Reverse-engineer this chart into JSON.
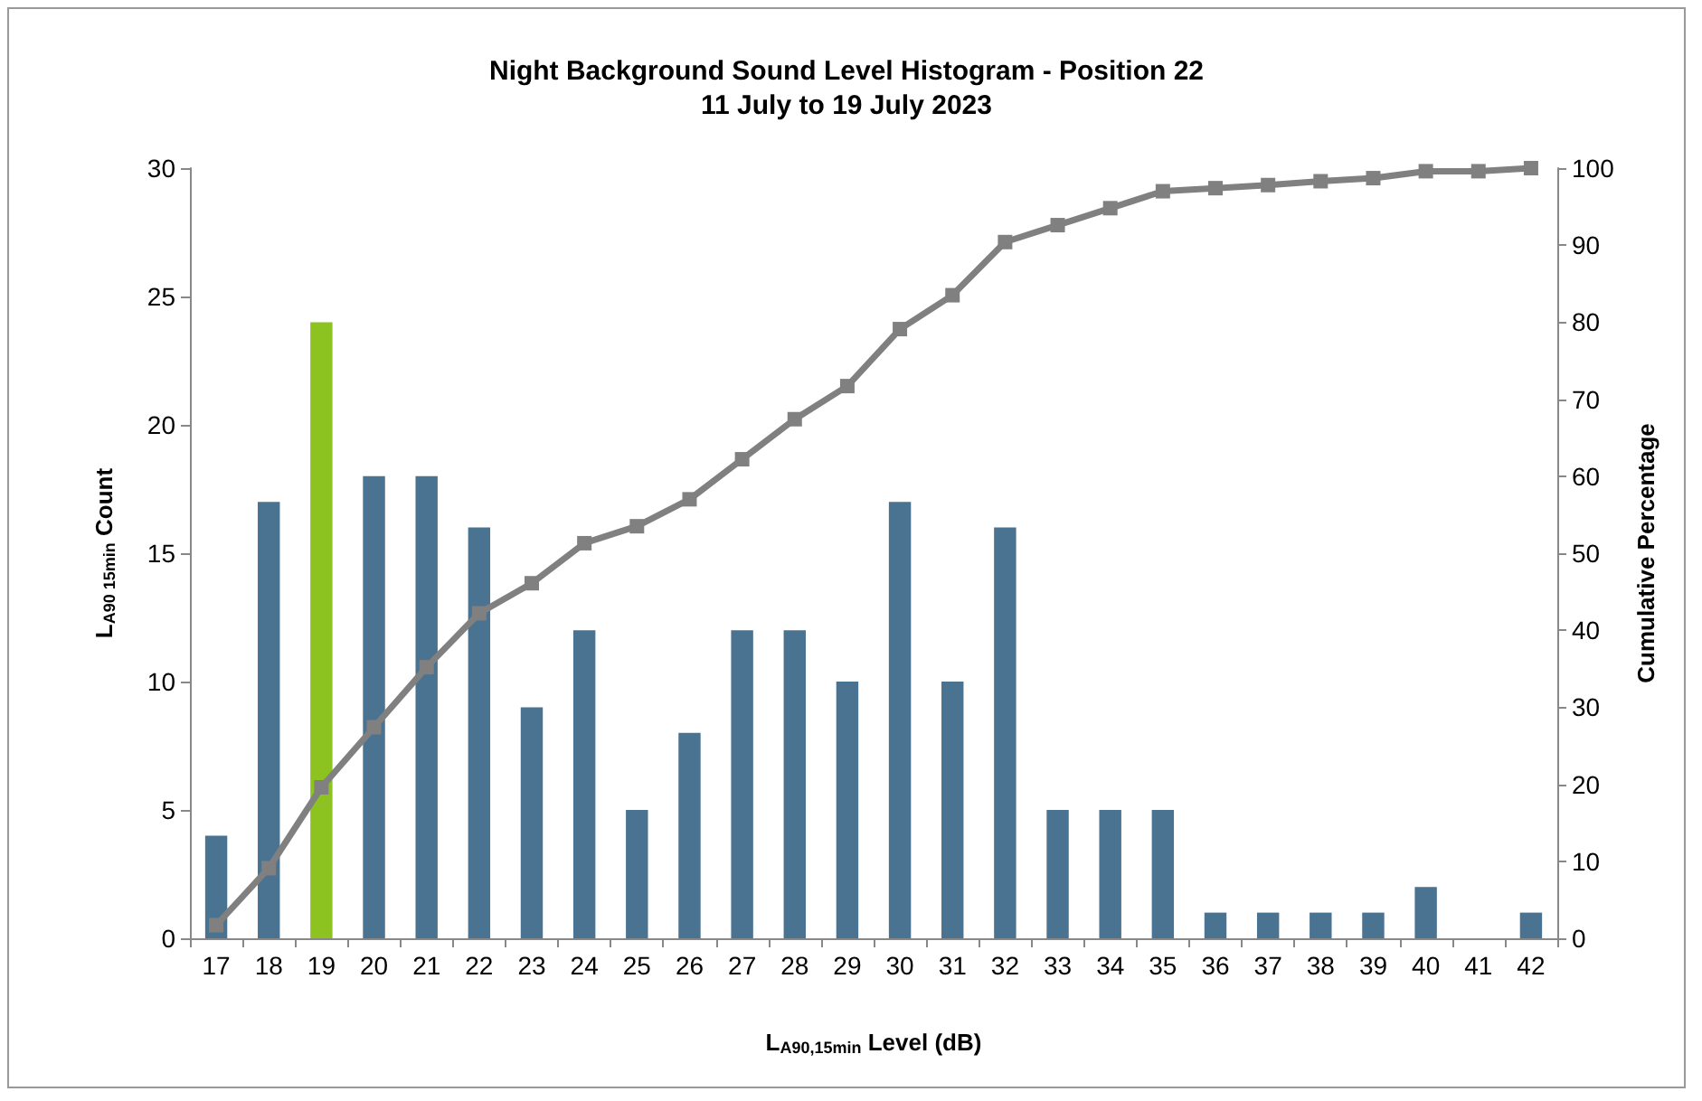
{
  "chart_data": {
    "type": "bar",
    "title": "Night Background Sound Level Histogram - Position 22",
    "subtitle": "11 July to 19 July 2023",
    "xlabel": "L$_{A90,15min}$ Level (dB)",
    "ylabel": "L$_{A90 15min}$ Count",
    "y2label": "Cumulative Percentage",
    "categories": [
      "17",
      "18",
      "19",
      "20",
      "21",
      "22",
      "23",
      "24",
      "25",
      "26",
      "27",
      "28",
      "29",
      "30",
      "31",
      "32",
      "33",
      "34",
      "35",
      "36",
      "37",
      "38",
      "39",
      "40",
      "41",
      "42"
    ],
    "ylim": [
      0,
      30
    ],
    "yticks": [
      0,
      5,
      10,
      15,
      20,
      25,
      30
    ],
    "y2lim": [
      0,
      100
    ],
    "y2ticks": [
      0,
      10,
      20,
      30,
      40,
      50,
      60,
      70,
      80,
      90,
      100
    ],
    "grid": false,
    "series": [
      {
        "colors": [
          "#4a7291",
          "#4a7291",
          "#8cc320",
          "#4a7291",
          "#4a7291",
          "#4a7291",
          "#4a7291",
          "#4a7291",
          "#4a7291",
          "#4a7291",
          "#4a7291",
          "#4a7291",
          "#4a7291",
          "#4a7291",
          "#4a7291",
          "#4a7291",
          "#4a7291",
          "#4a7291",
          "#4a7291",
          "#4a7291",
          "#4a7291",
          "#4a7291",
          "#4a7291",
          "#4a7291",
          "#4a7291",
          "#4a7291"
        ],
        "values": [
          4,
          17,
          24,
          18,
          18,
          16,
          9,
          12,
          5,
          8,
          12,
          12,
          10,
          17,
          10,
          16,
          5,
          5,
          5,
          1,
          1,
          1,
          1,
          2,
          0,
          1
        ]
      },
      {
        "type": "line",
        "axis": "y2",
        "color": "#808080",
        "marker": "square",
        "line_style": "solid",
        "values": [
          1.7,
          9.1,
          19.6,
          27.4,
          35.2,
          42.2,
          46.1,
          51.3,
          53.5,
          57.0,
          62.2,
          67.4,
          71.7,
          79.1,
          83.5,
          90.4,
          92.6,
          94.8,
          97.0,
          97.4,
          97.8,
          98.3,
          98.7,
          99.6,
          99.6,
          100
        ]
      }
    ]
  }
}
